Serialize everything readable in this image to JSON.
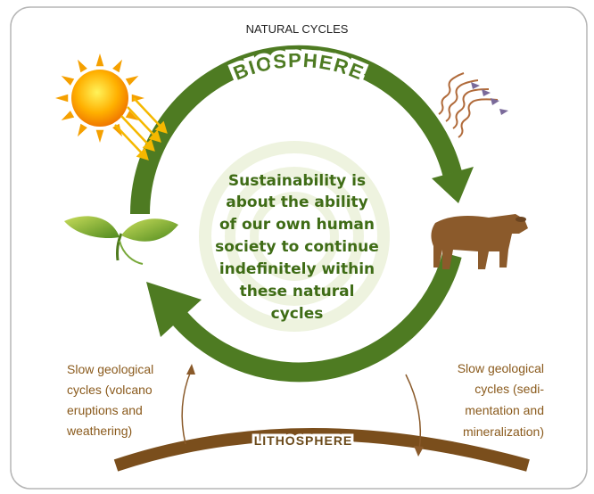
{
  "title": "NATURAL CYCLES",
  "biosphere_label": "BIOSPHERE",
  "center_text": [
    "Sustainability is",
    "about the ability",
    "of our own human",
    "society to continue",
    "indefinitely within",
    "these natural",
    "cycles"
  ],
  "left_note": [
    "Slow geological",
    "cycles (volcano",
    "eruptions and",
    "weathering)"
  ],
  "right_note": [
    "Slow geological",
    "cycles (sedi-",
    "mentation and",
    "mineralization)"
  ],
  "lithosphere_label": "LITHOSPHERE"
}
